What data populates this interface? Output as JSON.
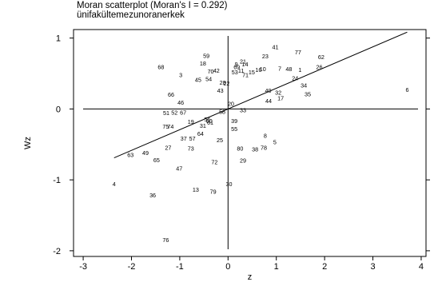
{
  "chart_data": {
    "type": "scatter",
    "title": "Moran scatterplot (Moran's I = 0.292)",
    "subtitle": "ünifakültemezunoranerkek",
    "xlabel": "z",
    "ylabel": "Wz",
    "xlim": [
      -3.2,
      4.1
    ],
    "ylim": [
      -2.08,
      1.12
    ],
    "x_ticks": [
      -3,
      -2,
      -1,
      0,
      1,
      2,
      3,
      4
    ],
    "y_ticks": [
      -2,
      -1,
      0,
      1
    ],
    "points": [
      {
        "label": "1",
        "x": 1.49,
        "y": 0.55
      },
      {
        "label": "3",
        "x": -0.98,
        "y": 0.48
      },
      {
        "label": "4",
        "x": -2.36,
        "y": -1.06
      },
      {
        "label": "5",
        "x": 0.97,
        "y": -0.47
      },
      {
        "label": "6",
        "x": 3.71,
        "y": 0.27
      },
      {
        "label": "7",
        "x": 1.07,
        "y": 0.57
      },
      {
        "label": "8",
        "x": 0.77,
        "y": -0.38
      },
      {
        "label": "9",
        "x": 0.17,
        "y": 0.63
      },
      {
        "label": "10",
        "x": 0.72,
        "y": 0.56
      },
      {
        "label": "11",
        "x": 0.27,
        "y": 0.54
      },
      {
        "label": "13",
        "x": -0.67,
        "y": -1.14
      },
      {
        "label": "14",
        "x": 0.35,
        "y": 0.63
      },
      {
        "label": "15",
        "x": 0.49,
        "y": 0.52
      },
      {
        "label": "16",
        "x": 0.63,
        "y": 0.55
      },
      {
        "label": "17",
        "x": 1.09,
        "y": 0.15
      },
      {
        "label": "18",
        "x": -0.52,
        "y": 0.64
      },
      {
        "label": "19",
        "x": -0.77,
        "y": -0.18
      },
      {
        "label": "20",
        "x": 0.06,
        "y": 0.07
      },
      {
        "label": "21",
        "x": 0.31,
        "y": 0.67
      },
      {
        "label": "22",
        "x": -0.03,
        "y": 0.36
      },
      {
        "label": "23",
        "x": 0.77,
        "y": 0.74
      },
      {
        "label": "24",
        "x": 1.39,
        "y": 0.43
      },
      {
        "label": "25",
        "x": -0.17,
        "y": -0.44
      },
      {
        "label": "26",
        "x": 1.89,
        "y": 0.59
      },
      {
        "label": "27",
        "x": -1.24,
        "y": -0.55
      },
      {
        "label": "28",
        "x": -0.11,
        "y": 0.37
      },
      {
        "label": "29",
        "x": 0.31,
        "y": -0.73
      },
      {
        "label": "30",
        "x": 0.02,
        "y": -1.06
      },
      {
        "label": "31",
        "x": -0.52,
        "y": -0.24
      },
      {
        "label": "32",
        "x": 1.04,
        "y": 0.23
      },
      {
        "label": "33",
        "x": 0.31,
        "y": -0.02
      },
      {
        "label": "34",
        "x": 1.57,
        "y": 0.33
      },
      {
        "label": "35",
        "x": 1.65,
        "y": 0.21
      },
      {
        "label": "36",
        "x": -1.56,
        "y": -1.22
      },
      {
        "label": "37",
        "x": -0.92,
        "y": -0.42
      },
      {
        "label": "38",
        "x": 0.56,
        "y": -0.57
      },
      {
        "label": "39",
        "x": 0.13,
        "y": -0.17
      },
      {
        "label": "40",
        "x": 0.83,
        "y": 0.26
      },
      {
        "label": "41",
        "x": 0.98,
        "y": 0.87
      },
      {
        "label": "42",
        "x": -0.24,
        "y": 0.54
      },
      {
        "label": "43",
        "x": -0.16,
        "y": 0.26
      },
      {
        "label": "44",
        "x": 0.84,
        "y": 0.11
      },
      {
        "label": "45",
        "x": -0.62,
        "y": 0.41
      },
      {
        "label": "46",
        "x": -0.98,
        "y": 0.09
      },
      {
        "label": "47",
        "x": -1.01,
        "y": -0.84
      },
      {
        "label": "48",
        "x": 1.26,
        "y": 0.56
      },
      {
        "label": "49",
        "x": -1.71,
        "y": -0.62
      },
      {
        "label": "51",
        "x": -1.28,
        "y": -0.06
      },
      {
        "label": "52",
        "x": -1.11,
        "y": -0.05
      },
      {
        "label": "53",
        "x": 0.14,
        "y": 0.52
      },
      {
        "label": "54",
        "x": -0.4,
        "y": 0.42
      },
      {
        "label": "55",
        "x": 0.13,
        "y": -0.28
      },
      {
        "label": "56",
        "x": -0.43,
        "y": -0.15
      },
      {
        "label": "57",
        "x": -0.74,
        "y": -0.42
      },
      {
        "label": "58",
        "x": -0.12,
        "y": -0.04
      },
      {
        "label": "59",
        "x": -0.45,
        "y": 0.75
      },
      {
        "label": "60",
        "x": -0.39,
        "y": -0.17
      },
      {
        "label": "61",
        "x": -0.37,
        "y": -0.19
      },
      {
        "label": "62",
        "x": 1.93,
        "y": 0.73
      },
      {
        "label": "63",
        "x": -2.02,
        "y": -0.65
      },
      {
        "label": "64",
        "x": -0.57,
        "y": -0.35
      },
      {
        "label": "65",
        "x": -1.48,
        "y": -0.72
      },
      {
        "label": "66",
        "x": -1.18,
        "y": 0.2
      },
      {
        "label": "67",
        "x": -0.93,
        "y": -0.05
      },
      {
        "label": "68",
        "x": -1.39,
        "y": 0.59
      },
      {
        "label": "69",
        "x": 0.18,
        "y": 0.59
      },
      {
        "label": "70",
        "x": -0.36,
        "y": 0.53
      },
      {
        "label": "71",
        "x": 0.36,
        "y": 0.48
      },
      {
        "label": "72",
        "x": -0.28,
        "y": -0.75
      },
      {
        "label": "73",
        "x": -0.77,
        "y": -0.56
      },
      {
        "label": "74",
        "x": -1.19,
        "y": -0.25
      },
      {
        "label": "75",
        "x": -1.29,
        "y": -0.25
      },
      {
        "label": "76",
        "x": -1.29,
        "y": -1.85
      },
      {
        "label": "77",
        "x": 1.45,
        "y": 0.8
      },
      {
        "label": "78",
        "x": 0.74,
        "y": -0.55
      },
      {
        "label": "79",
        "x": -0.31,
        "y": -1.17
      },
      {
        "label": "80",
        "x": 0.25,
        "y": -0.56
      }
    ],
    "regression": {
      "slope": 0.292,
      "intercept": 0.0,
      "x_range": [
        -2.36,
        3.71
      ]
    },
    "zero_lines": true,
    "grid": false,
    "legend": "none"
  }
}
